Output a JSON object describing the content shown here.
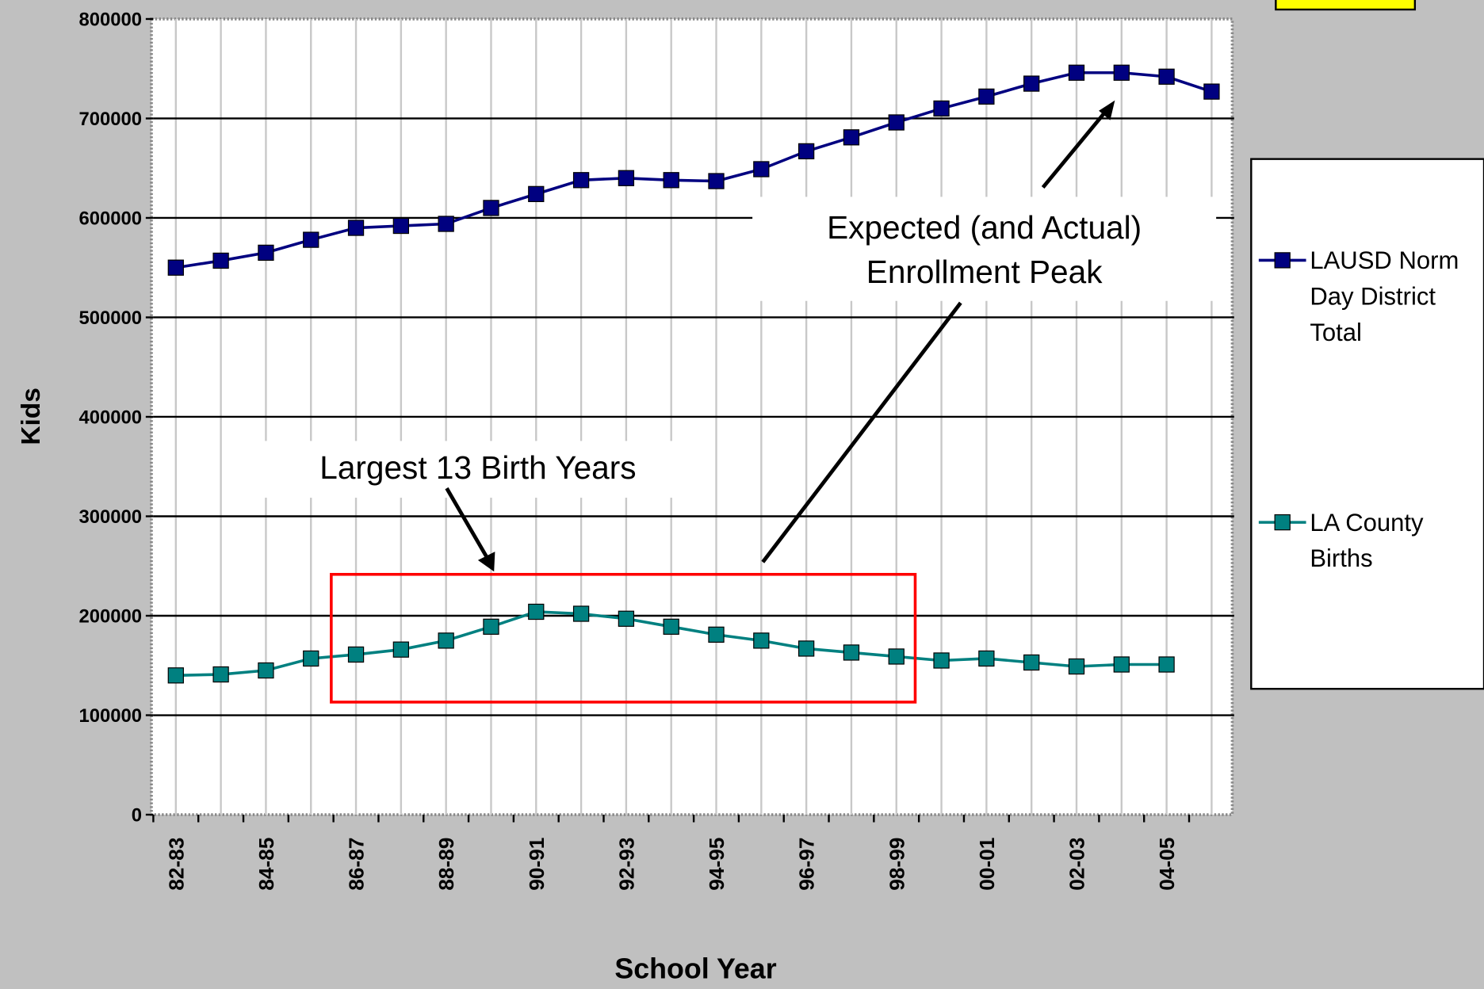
{
  "chart_data": {
    "type": "line",
    "x_label": "School Year",
    "y_label": "Kids",
    "categories": [
      "82-83",
      null,
      "84-85",
      null,
      "86-87",
      null,
      "88-89",
      null,
      "90-91",
      null,
      "92-93",
      null,
      "94-95",
      null,
      "96-97",
      null,
      "98-99",
      null,
      "00-01",
      null,
      "02-03",
      null,
      "04-05",
      null
    ],
    "series": [
      {
        "name": "LAUSD Norm Day District Total",
        "color": "#000080",
        "values": [
          550000,
          557000,
          565000,
          578000,
          590000,
          592000,
          594000,
          610000,
          624000,
          638000,
          640000,
          638000,
          637000,
          649000,
          667000,
          681000,
          696000,
          710000,
          722000,
          735000,
          746000,
          746000,
          742000,
          727000
        ]
      },
      {
        "name": "LA County Births",
        "color": "#008080",
        "values": [
          140000,
          141000,
          145000,
          157000,
          161000,
          166000,
          175000,
          189000,
          204000,
          202000,
          197000,
          189000,
          181000,
          175000,
          167000,
          163000,
          159000,
          155000,
          157000,
          153000,
          149000,
          151000,
          151000,
          null
        ]
      }
    ],
    "ylim": [
      0,
      800000
    ],
    "yticks": [
      0,
      100000,
      200000,
      300000,
      400000,
      500000,
      600000,
      700000,
      800000
    ],
    "grid": true,
    "legend": "right",
    "annotations": [
      {
        "lines": [
          "Largest 13 Birth Years"
        ]
      },
      {
        "lines": [
          "Expected (and Actual)",
          "Enrollment Peak"
        ]
      }
    ]
  }
}
